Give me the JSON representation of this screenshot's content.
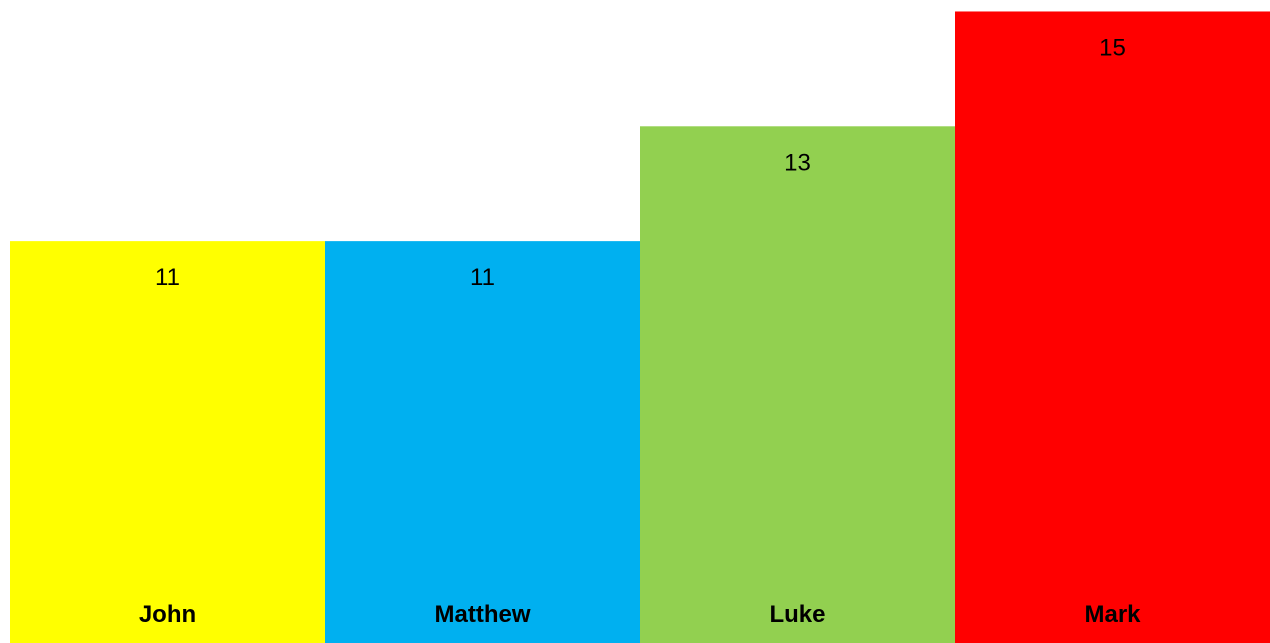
{
  "chart_data": {
    "type": "bar",
    "title": "",
    "xlabel": "",
    "ylabel": "",
    "categories": [
      "John",
      "Matthew",
      "Luke",
      "Mark"
    ],
    "values": [
      11,
      11,
      13,
      15
    ],
    "colors": [
      "#ffff00",
      "#00b0f0",
      "#92d050",
      "#ff0000"
    ],
    "ylim": [
      4,
      15.2
    ],
    "grid": false,
    "legend": "none"
  }
}
